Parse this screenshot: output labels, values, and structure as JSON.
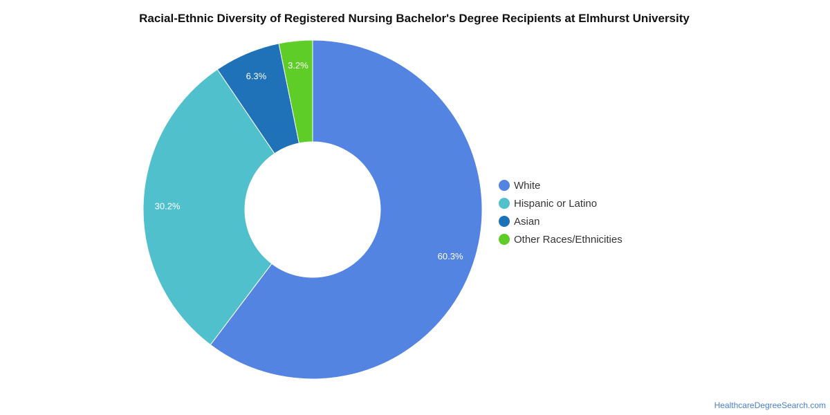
{
  "chart_data": {
    "type": "pie",
    "title": "Racial-Ethnic Diversity of Registered Nursing Bachelor's Degree Recipients at Elmhurst University",
    "donut": true,
    "slices": [
      {
        "label": "White",
        "value": 60.3,
        "display": "60.3%",
        "color": "#5384e2"
      },
      {
        "label": "Hispanic or Latino",
        "value": 30.2,
        "display": "30.2%",
        "color": "#50c0cc"
      },
      {
        "label": "Asian",
        "value": 6.3,
        "display": "6.3%",
        "color": "#1f71b8"
      },
      {
        "label": "Other Races/Ethnicities",
        "value": 3.2,
        "display": "3.2%",
        "color": "#5fcd28"
      }
    ],
    "legend_position": "right"
  },
  "source": "HealthcareDegreeSearch.com"
}
